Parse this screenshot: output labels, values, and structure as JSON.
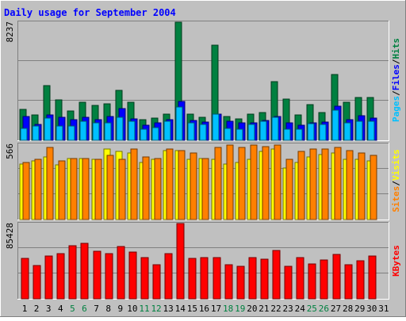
{
  "title": "Daily usage for September 2004",
  "colors": {
    "background": "#c0c0c0",
    "border_light": "#ffffff",
    "border_dark": "#808080",
    "panel_bg": "#c0c0c0",
    "grid": "#808080",
    "title": "#0000ff",
    "hits": "#008040",
    "files": "#0000ff",
    "pages": "#00c0ff",
    "visits": "#ffff00",
    "sites": "#ff8000",
    "kbytes": "#ff0000",
    "weekend_label": "#008040",
    "weekday_label": "#000000"
  },
  "chart_data": [
    {
      "type": "bar",
      "panel": "hits-files-pages",
      "ymax_label": "8237",
      "ylim": [
        0,
        8237
      ],
      "right_legend": [
        {
          "text": "Hits",
          "color": "#008040"
        },
        {
          "text": "/",
          "color": "#000000"
        },
        {
          "text": "Files",
          "color": "#0000ff"
        },
        {
          "text": "/",
          "color": "#000000"
        },
        {
          "text": "Pages",
          "color": "#00c0ff"
        }
      ],
      "categories": [
        "1",
        "2",
        "3",
        "4",
        "5",
        "6",
        "7",
        "8",
        "9",
        "10",
        "11",
        "12",
        "13",
        "14",
        "15",
        "16",
        "17",
        "18",
        "19",
        "20",
        "21",
        "22",
        "23",
        "24",
        "25",
        "26",
        "27",
        "28",
        "29",
        "30",
        "31"
      ],
      "weekend": [
        false,
        false,
        false,
        false,
        true,
        true,
        false,
        false,
        false,
        false,
        true,
        true,
        false,
        false,
        false,
        false,
        false,
        true,
        true,
        false,
        false,
        false,
        false,
        false,
        true,
        true,
        false,
        false,
        false,
        false,
        false
      ],
      "series": [
        {
          "name": "Hits",
          "values": [
            2150,
            1750,
            3800,
            2800,
            2050,
            2650,
            2450,
            2550,
            3500,
            2650,
            1450,
            1550,
            1850,
            8237,
            1800,
            1600,
            6650,
            1650,
            1500,
            1850,
            1950,
            4100,
            2900,
            1750,
            2500,
            1950,
            4600,
            2650,
            3000,
            3000,
            0
          ]
        },
        {
          "name": "Files",
          "values": [
            1650,
            1100,
            1750,
            1600,
            1450,
            1600,
            1450,
            1650,
            2200,
            1500,
            1050,
            1200,
            1450,
            2700,
            1400,
            1250,
            1800,
            1300,
            1200,
            1200,
            1400,
            1650,
            1200,
            1050,
            1200,
            1250,
            2400,
            1450,
            1700,
            1550,
            0
          ]
        },
        {
          "name": "Pages",
          "values": [
            850,
            1000,
            1550,
            1000,
            1000,
            1300,
            1200,
            1200,
            1600,
            1300,
            800,
            900,
            1350,
            2300,
            1200,
            1100,
            1800,
            850,
            800,
            1100,
            1300,
            1600,
            800,
            800,
            1150,
            1100,
            2100,
            1200,
            1350,
            1300,
            0
          ]
        }
      ]
    },
    {
      "type": "bar",
      "panel": "visits-sites",
      "ymax_label": "566",
      "ylim": [
        0,
        566
      ],
      "right_legend": [
        {
          "text": "Visits",
          "color": "#ffff00"
        },
        {
          "text": "/",
          "color": "#000000"
        },
        {
          "text": "Sites",
          "color": "#ff8000"
        }
      ],
      "categories": [
        "1",
        "2",
        "3",
        "4",
        "5",
        "6",
        "7",
        "8",
        "9",
        "10",
        "11",
        "12",
        "13",
        "14",
        "15",
        "16",
        "17",
        "18",
        "19",
        "20",
        "21",
        "22",
        "23",
        "24",
        "25",
        "26",
        "27",
        "28",
        "29",
        "30",
        "31"
      ],
      "series": [
        {
          "name": "Visits",
          "values": [
            420,
            440,
            470,
            410,
            460,
            460,
            450,
            530,
            510,
            500,
            430,
            450,
            520,
            520,
            450,
            460,
            450,
            420,
            430,
            450,
            510,
            530,
            390,
            430,
            470,
            490,
            500,
            450,
            450,
            440,
            0
          ]
        },
        {
          "name": "Sites",
          "values": [
            430,
            450,
            540,
            440,
            460,
            460,
            450,
            480,
            450,
            530,
            470,
            460,
            530,
            520,
            500,
            460,
            540,
            560,
            540,
            560,
            550,
            560,
            450,
            510,
            530,
            530,
            540,
            520,
            500,
            480,
            0
          ]
        }
      ]
    },
    {
      "type": "bar",
      "panel": "kbytes",
      "ymax_label": "85428",
      "ylim": [
        0,
        85428
      ],
      "right_legend": [
        {
          "text": "KBytes",
          "color": "#ff0000"
        }
      ],
      "categories": [
        "1",
        "2",
        "3",
        "4",
        "5",
        "6",
        "7",
        "8",
        "9",
        "10",
        "11",
        "12",
        "13",
        "14",
        "15",
        "16",
        "17",
        "18",
        "19",
        "20",
        "21",
        "22",
        "23",
        "24",
        "25",
        "26",
        "27",
        "28",
        "29",
        "30",
        "31"
      ],
      "series": [
        {
          "name": "KBytes",
          "values": [
            46000,
            38000,
            49000,
            51000,
            60000,
            63000,
            54000,
            51000,
            59000,
            53000,
            47000,
            39000,
            51000,
            85428,
            46000,
            47000,
            47000,
            39000,
            37000,
            47000,
            45000,
            55000,
            37000,
            47000,
            40000,
            44000,
            50000,
            39000,
            43000,
            49000,
            0
          ]
        }
      ]
    }
  ]
}
